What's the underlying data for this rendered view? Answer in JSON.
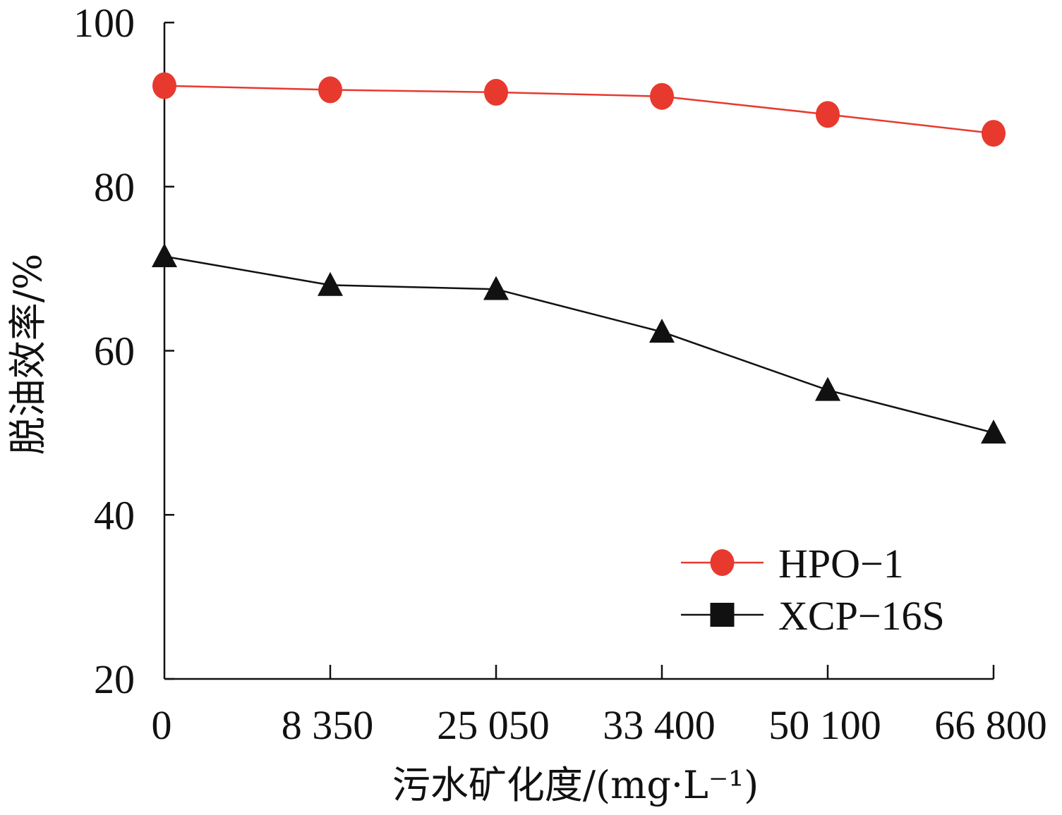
{
  "chart_data": {
    "type": "line",
    "title": "",
    "xlabel": "污水矿化度/(mg·L⁻¹)",
    "ylabel": "脱油效率/%",
    "categories": [
      "0",
      "8 350",
      "25 050",
      "33 400",
      "50 100",
      "66 800"
    ],
    "ylim": [
      20,
      100
    ],
    "yticks": [
      "20",
      "40",
      "60",
      "80",
      "100"
    ],
    "grid": false,
    "legend_position": "bottom-right",
    "series": [
      {
        "name": "HPO−1",
        "color": "#e8392e",
        "marker": "circle",
        "values": [
          92.3,
          91.8,
          91.5,
          91.0,
          88.8,
          86.5
        ]
      },
      {
        "name": "XCP−16S",
        "color": "#111111",
        "marker": "triangle",
        "legend_marker": "square",
        "values": [
          71.5,
          68.0,
          67.5,
          62.3,
          55.2,
          50.0
        ]
      }
    ]
  }
}
